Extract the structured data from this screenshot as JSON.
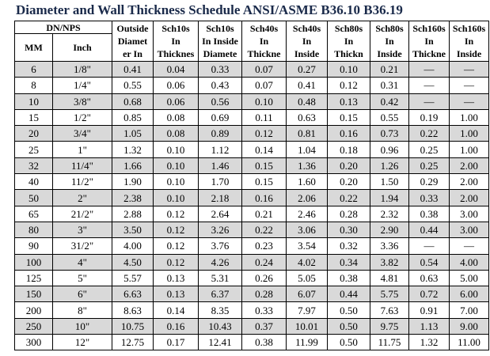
{
  "title": "Diameter and Wall Thickness Schedule ANSI/ASME B36.10 B36.19",
  "table": {
    "group_header": "DN/NPS",
    "sub_headers": [
      "MM",
      "Inch"
    ],
    "column_headers": [
      [
        "Outside",
        "Diamet",
        "er In"
      ],
      [
        "Sch10s",
        "In",
        "Thicknes"
      ],
      [
        "Sch10s",
        "In Inside",
        "Diamete"
      ],
      [
        "Sch40s",
        "In",
        "Thickne"
      ],
      [
        "Sch40s",
        "In",
        "Inside"
      ],
      [
        "Sch80s",
        "In",
        "Thickn"
      ],
      [
        "Sch80s",
        "In",
        "Inside"
      ],
      [
        "Sch160s",
        "In",
        "Thickne"
      ],
      [
        "Sch160s",
        "In",
        "Inside"
      ]
    ],
    "rows": [
      [
        "6",
        "1/8\"",
        "0.41",
        "0.04",
        "0.33",
        "0.07",
        "0.27",
        "0.10",
        "0.21",
        "—",
        "—"
      ],
      [
        "8",
        "1/4\"",
        "0.55",
        "0.06",
        "0.43",
        "0.07",
        "0.41",
        "0.12",
        "0.31",
        "—",
        "—"
      ],
      [
        "10",
        "3/8\"",
        "0.68",
        "0.06",
        "0.56",
        "0.10",
        "0.48",
        "0.13",
        "0.42",
        "—",
        "—"
      ],
      [
        "15",
        "1/2\"",
        "0.85",
        "0.08",
        "0.69",
        "0.11",
        "0.63",
        "0.15",
        "0.55",
        "0.19",
        "1.00"
      ],
      [
        "20",
        "3/4\"",
        "1.05",
        "0.08",
        "0.89",
        "0.12",
        "0.81",
        "0.16",
        "0.73",
        "0.22",
        "1.00"
      ],
      [
        "25",
        "1\"",
        "1.32",
        "0.10",
        "1.12",
        "0.14",
        "1.04",
        "0.18",
        "0.96",
        "0.25",
        "1.00"
      ],
      [
        "32",
        "11/4\"",
        "1.66",
        "0.10",
        "1.46",
        "0.15",
        "1.36",
        "0.20",
        "1.26",
        "0.25",
        "2.00"
      ],
      [
        "40",
        "11/2\"",
        "1.90",
        "0.10",
        "1.70",
        "0.15",
        "1.60",
        "0.20",
        "1.50",
        "0.29",
        "2.00"
      ],
      [
        "50",
        "2\"",
        "2.38",
        "0.10",
        "2.18",
        "0.16",
        "2.06",
        "0.22",
        "1.94",
        "0.33",
        "2.00"
      ],
      [
        "65",
        "21/2\"",
        "2.88",
        "0.12",
        "2.64",
        "0.21",
        "2.46",
        "0.28",
        "2.32",
        "0.38",
        "3.00"
      ],
      [
        "80",
        "3\"",
        "3.50",
        "0.12",
        "3.26",
        "0.22",
        "3.06",
        "0.30",
        "2.90",
        "0.44",
        "3.00"
      ],
      [
        "90",
        "31/2\"",
        "4.00",
        "0.12",
        "3.76",
        "0.23",
        "3.54",
        "0.32",
        "3.36",
        "—",
        "—"
      ],
      [
        "100",
        "4\"",
        "4.50",
        "0.12",
        "4.26",
        "0.24",
        "4.02",
        "0.34",
        "3.82",
        "0.54",
        "4.00"
      ],
      [
        "125",
        "5\"",
        "5.57",
        "0.13",
        "5.31",
        "0.26",
        "5.05",
        "0.38",
        "4.81",
        "0.63",
        "5.00"
      ],
      [
        "150",
        "6\"",
        "6.63",
        "0.13",
        "6.37",
        "0.28",
        "6.07",
        "0.44",
        "5.75",
        "0.72",
        "6.00"
      ],
      [
        "200",
        "8\"",
        "8.63",
        "0.14",
        "8.35",
        "0.33",
        "7.97",
        "0.50",
        "7.63",
        "0.91",
        "7.00"
      ],
      [
        "250",
        "10\"",
        "10.75",
        "0.16",
        "10.43",
        "0.37",
        "10.01",
        "0.50",
        "9.75",
        "1.13",
        "9.00"
      ],
      [
        "300",
        "12\"",
        "12.75",
        "0.17",
        "12.41",
        "0.38",
        "11.99",
        "0.50",
        "11.75",
        "1.32",
        "11.00"
      ]
    ]
  }
}
